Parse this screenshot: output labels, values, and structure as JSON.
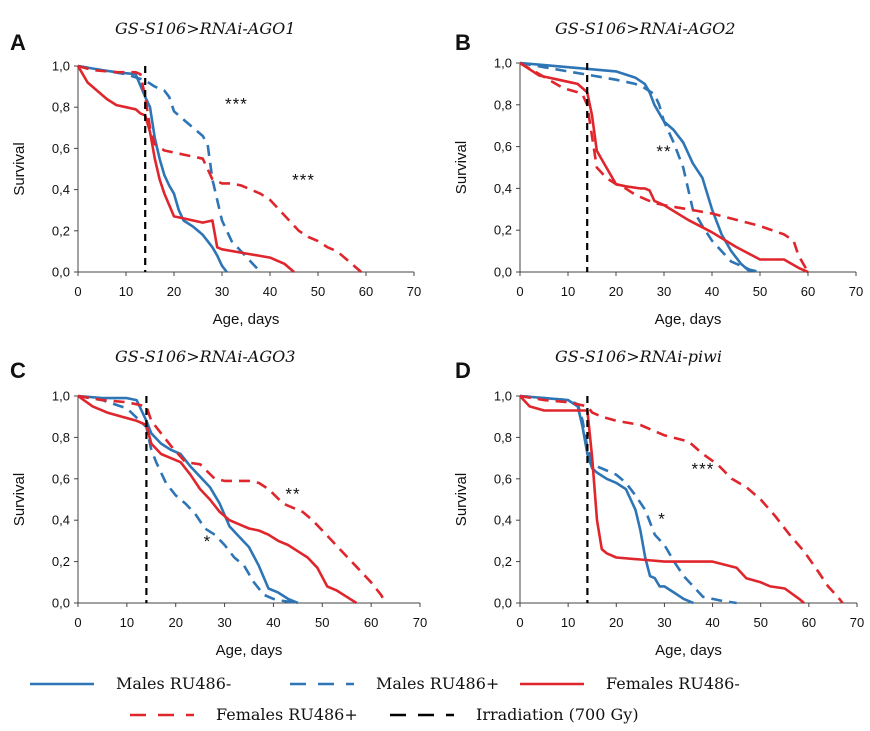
{
  "colors": {
    "males": "#2e75b6",
    "females": "#e0262d",
    "irradiation": "#000000",
    "axis": "#444444"
  },
  "legend": [
    {
      "key": "males_minus",
      "label": "Males RU486-",
      "color": "#2e75b6",
      "dash": false
    },
    {
      "key": "males_plus",
      "label": "Males RU486+",
      "color": "#2e75b6",
      "dash": true
    },
    {
      "key": "females_minus",
      "label": "Females RU486-",
      "color": "#e0262d",
      "dash": false
    },
    {
      "key": "females_plus",
      "label": "Females RU486+",
      "color": "#e0262d",
      "dash": true
    },
    {
      "key": "irradiation",
      "label": "Irradiation (700 Gy)",
      "color": "#000000",
      "dash": true
    }
  ],
  "chart_data": [
    {
      "type": "line",
      "panel": "A",
      "title": "GS-S106>RNAi-AGO1",
      "xlabel": "Age, days",
      "ylabel": "Survival",
      "xlim": [
        0,
        70
      ],
      "ylim": [
        0,
        1
      ],
      "xticks": [
        "0",
        "10",
        "20",
        "30",
        "40",
        "50",
        "60",
        "70"
      ],
      "yticks": [
        "0,0",
        "0,2",
        "0,4",
        "0,6",
        "0,8",
        "1,0"
      ],
      "irradiation_day": 14,
      "annotations": [
        {
          "text": "***",
          "x": 33,
          "y": 0.79
        },
        {
          "text": "***",
          "x": 47,
          "y": 0.42
        }
      ],
      "series": [
        {
          "name": "Males RU486-",
          "x": [
            0,
            5,
            8,
            12,
            14,
            15,
            16,
            17,
            18,
            19,
            20,
            21,
            22,
            24,
            25,
            26,
            27,
            28,
            29,
            30,
            31
          ],
          "y": [
            1.0,
            0.98,
            0.97,
            0.96,
            0.85,
            0.8,
            0.65,
            0.55,
            0.47,
            0.42,
            0.38,
            0.3,
            0.25,
            0.22,
            0.2,
            0.18,
            0.15,
            0.12,
            0.08,
            0.03,
            0.0
          ]
        },
        {
          "name": "Males RU486+",
          "x": [
            0,
            5,
            10,
            14,
            16,
            18,
            19,
            20,
            22,
            24,
            26,
            27,
            28,
            29,
            30,
            32,
            34,
            36,
            38
          ],
          "y": [
            1.0,
            0.98,
            0.96,
            0.93,
            0.9,
            0.88,
            0.85,
            0.78,
            0.74,
            0.7,
            0.66,
            0.62,
            0.45,
            0.35,
            0.25,
            0.15,
            0.1,
            0.05,
            0.0
          ]
        },
        {
          "name": "Females RU486-",
          "x": [
            0,
            2,
            4,
            6,
            8,
            10,
            12,
            13,
            14,
            15,
            16,
            17,
            18,
            20,
            22,
            24,
            26,
            28,
            29,
            30,
            35,
            40,
            43,
            45
          ],
          "y": [
            1.0,
            0.92,
            0.88,
            0.84,
            0.81,
            0.8,
            0.79,
            0.77,
            0.76,
            0.68,
            0.55,
            0.45,
            0.38,
            0.27,
            0.26,
            0.25,
            0.24,
            0.25,
            0.12,
            0.11,
            0.09,
            0.07,
            0.04,
            0.0
          ]
        },
        {
          "name": "Females RU486+",
          "x": [
            0,
            3,
            8,
            12,
            13,
            14,
            15,
            16,
            18,
            20,
            22,
            24,
            26,
            28,
            30,
            32,
            34,
            36,
            38,
            40,
            42,
            44,
            46,
            48,
            50,
            52,
            54,
            56,
            58,
            59
          ],
          "y": [
            1.0,
            0.98,
            0.97,
            0.97,
            0.96,
            0.85,
            0.7,
            0.62,
            0.59,
            0.58,
            0.57,
            0.56,
            0.55,
            0.45,
            0.43,
            0.43,
            0.42,
            0.4,
            0.38,
            0.35,
            0.3,
            0.25,
            0.2,
            0.17,
            0.15,
            0.12,
            0.1,
            0.06,
            0.02,
            0.0
          ]
        }
      ]
    },
    {
      "type": "line",
      "panel": "B",
      "title": "GS-S106>RNAi-AGO2",
      "xlabel": "Age, days",
      "ylabel": "Survival",
      "xlim": [
        0,
        70
      ],
      "ylim": [
        0,
        1
      ],
      "xticks": [
        "0",
        "10",
        "20",
        "30",
        "40",
        "50",
        "60",
        "70"
      ],
      "yticks": [
        "0,0",
        "0,2",
        "0,4",
        "0,6",
        "0,8",
        "1,0"
      ],
      "irradiation_day": 14,
      "annotations": [
        {
          "text": "**",
          "x": 30,
          "y": 0.55
        }
      ],
      "series": [
        {
          "name": "Males RU486-",
          "x": [
            0,
            5,
            10,
            15,
            20,
            24,
            26,
            27,
            28,
            30,
            32,
            34,
            36,
            38,
            40,
            42,
            44,
            46,
            48
          ],
          "y": [
            1.0,
            0.99,
            0.98,
            0.97,
            0.96,
            0.93,
            0.9,
            0.86,
            0.8,
            0.72,
            0.68,
            0.62,
            0.52,
            0.45,
            0.3,
            0.18,
            0.1,
            0.04,
            0.0
          ]
        },
        {
          "name": "Males RU486+",
          "x": [
            0,
            5,
            10,
            15,
            20,
            24,
            26,
            28,
            29,
            30,
            32,
            34,
            35,
            36,
            38,
            40,
            42,
            44,
            46,
            48,
            50
          ],
          "y": [
            1.0,
            0.98,
            0.96,
            0.94,
            0.92,
            0.9,
            0.88,
            0.85,
            0.8,
            0.72,
            0.62,
            0.5,
            0.4,
            0.3,
            0.22,
            0.15,
            0.1,
            0.05,
            0.03,
            0.01,
            0.0
          ]
        },
        {
          "name": "Females RU486-",
          "x": [
            0,
            2,
            4,
            6,
            8,
            10,
            12,
            13,
            14,
            15,
            16,
            17,
            18,
            20,
            22,
            25,
            26,
            27,
            28,
            30,
            35,
            40,
            45,
            50,
            55,
            58,
            60
          ],
          "y": [
            1.0,
            0.97,
            0.94,
            0.93,
            0.92,
            0.91,
            0.9,
            0.88,
            0.86,
            0.75,
            0.58,
            0.54,
            0.5,
            0.42,
            0.41,
            0.4,
            0.4,
            0.39,
            0.34,
            0.32,
            0.25,
            0.19,
            0.12,
            0.06,
            0.06,
            0.02,
            0.0
          ]
        },
        {
          "name": "Females RU486+",
          "x": [
            0,
            3,
            6,
            9,
            12,
            13,
            14,
            15,
            16,
            18,
            20,
            22,
            24,
            26,
            28,
            30,
            35,
            40,
            45,
            50,
            55,
            57,
            58,
            60
          ],
          "y": [
            1.0,
            0.96,
            0.92,
            0.88,
            0.86,
            0.85,
            0.8,
            0.65,
            0.5,
            0.45,
            0.42,
            0.4,
            0.37,
            0.35,
            0.33,
            0.32,
            0.3,
            0.28,
            0.25,
            0.22,
            0.18,
            0.15,
            0.08,
            0.0
          ]
        }
      ]
    },
    {
      "type": "line",
      "panel": "C",
      "title": "GS-S106>RNAi-AGO3",
      "xlabel": "Age, days",
      "ylabel": "Survival",
      "xlim": [
        0,
        70
      ],
      "ylim": [
        0,
        1
      ],
      "xticks": [
        "0",
        "10",
        "20",
        "30",
        "40",
        "50",
        "60",
        "70"
      ],
      "yticks": [
        "0,0",
        "0,2",
        "0,4",
        "0,6",
        "0,8",
        "1,0"
      ],
      "irradiation_day": 14,
      "annotations": [
        {
          "text": "**",
          "x": 44,
          "y": 0.5
        },
        {
          "text": "*",
          "x": 26.5,
          "y": 0.27
        }
      ],
      "series": [
        {
          "name": "Males RU486-",
          "x": [
            0,
            5,
            10,
            12,
            13,
            14,
            15,
            17,
            19,
            21,
            23,
            25,
            27,
            29,
            31,
            33,
            35,
            37,
            39,
            41,
            43,
            45
          ],
          "y": [
            1.0,
            0.99,
            0.99,
            0.98,
            0.93,
            0.88,
            0.82,
            0.77,
            0.74,
            0.72,
            0.66,
            0.61,
            0.56,
            0.48,
            0.37,
            0.32,
            0.27,
            0.18,
            0.07,
            0.05,
            0.02,
            0.0
          ]
        },
        {
          "name": "Males RU486+",
          "x": [
            0,
            5,
            10,
            14,
            15,
            16,
            18,
            20,
            22,
            24,
            26,
            28,
            30,
            32,
            34,
            36,
            38,
            40,
            42,
            45
          ],
          "y": [
            1.0,
            0.98,
            0.94,
            0.85,
            0.74,
            0.68,
            0.58,
            0.52,
            0.48,
            0.43,
            0.36,
            0.33,
            0.28,
            0.22,
            0.18,
            0.1,
            0.04,
            0.02,
            0.01,
            0.0
          ]
        },
        {
          "name": "Females RU486-",
          "x": [
            0,
            3,
            6,
            9,
            12,
            14,
            15,
            17,
            19,
            21,
            23,
            25,
            27,
            29,
            31,
            33,
            35,
            37,
            39,
            41,
            43,
            45,
            47,
            49,
            51,
            53,
            55,
            57
          ],
          "y": [
            1.0,
            0.95,
            0.92,
            0.9,
            0.88,
            0.86,
            0.77,
            0.72,
            0.7,
            0.68,
            0.62,
            0.55,
            0.5,
            0.44,
            0.4,
            0.38,
            0.36,
            0.35,
            0.33,
            0.3,
            0.28,
            0.25,
            0.22,
            0.17,
            0.08,
            0.06,
            0.03,
            0.0
          ]
        },
        {
          "name": "Females RU486+",
          "x": [
            0,
            5,
            10,
            14,
            15,
            17,
            19,
            22,
            25,
            28,
            30,
            35,
            37,
            39,
            42,
            44,
            46,
            48,
            50,
            52,
            54,
            56,
            58,
            60,
            62,
            63
          ],
          "y": [
            1.0,
            0.98,
            0.97,
            0.95,
            0.88,
            0.82,
            0.76,
            0.68,
            0.67,
            0.6,
            0.59,
            0.59,
            0.58,
            0.55,
            0.48,
            0.46,
            0.44,
            0.4,
            0.35,
            0.3,
            0.25,
            0.2,
            0.15,
            0.1,
            0.04,
            0.0
          ]
        }
      ]
    },
    {
      "type": "line",
      "panel": "D",
      "title": "GS-S106>RNAi-piwi",
      "xlabel": "Age, days",
      "ylabel": "Survival",
      "xlim": [
        0,
        70
      ],
      "ylim": [
        0,
        1
      ],
      "xticks": [
        "0",
        "10",
        "20",
        "30",
        "40",
        "50",
        "60",
        "70"
      ],
      "yticks": [
        "0,0",
        "0,2",
        "0,4",
        "0,6",
        "0,8",
        "1,0"
      ],
      "irradiation_day": 14,
      "annotations": [
        {
          "text": "***",
          "x": 38,
          "y": 0.62
        },
        {
          "text": "*",
          "x": 29.5,
          "y": 0.38
        }
      ],
      "series": [
        {
          "name": "Males RU486-",
          "x": [
            0,
            5,
            10,
            12,
            13,
            14,
            15,
            16,
            18,
            20,
            22,
            23,
            24,
            25,
            26,
            27,
            28,
            29,
            30,
            32,
            34,
            35,
            36
          ],
          "y": [
            1.0,
            0.99,
            0.98,
            0.95,
            0.85,
            0.72,
            0.65,
            0.63,
            0.6,
            0.58,
            0.55,
            0.5,
            0.45,
            0.35,
            0.22,
            0.13,
            0.12,
            0.08,
            0.08,
            0.05,
            0.02,
            0.01,
            0.0
          ]
        },
        {
          "name": "Males RU486+",
          "x": [
            0,
            5,
            10,
            12,
            13,
            14,
            15,
            16,
            18,
            20,
            22,
            24,
            26,
            28,
            30,
            32,
            34,
            36,
            38,
            40,
            42,
            45
          ],
          "y": [
            1.0,
            0.99,
            0.98,
            0.96,
            0.88,
            0.75,
            0.68,
            0.66,
            0.64,
            0.62,
            0.58,
            0.52,
            0.45,
            0.33,
            0.28,
            0.2,
            0.13,
            0.08,
            0.03,
            0.02,
            0.01,
            0.0
          ]
        },
        {
          "name": "Females RU486-",
          "x": [
            0,
            2,
            5,
            8,
            10,
            14,
            15,
            16,
            17,
            18,
            20,
            25,
            30,
            35,
            40,
            45,
            47,
            50,
            52,
            55,
            58,
            59
          ],
          "y": [
            1.0,
            0.95,
            0.93,
            0.93,
            0.93,
            0.93,
            0.7,
            0.4,
            0.26,
            0.24,
            0.22,
            0.21,
            0.2,
            0.2,
            0.2,
            0.17,
            0.12,
            0.1,
            0.08,
            0.07,
            0.02,
            0.0
          ]
        },
        {
          "name": "Females RU486+",
          "x": [
            0,
            5,
            10,
            14,
            15,
            17,
            20,
            25,
            30,
            35,
            38,
            41,
            44,
            47,
            50,
            53,
            56,
            59,
            62,
            64,
            66,
            67
          ],
          "y": [
            1.0,
            0.98,
            0.97,
            0.95,
            0.92,
            0.9,
            0.88,
            0.86,
            0.81,
            0.78,
            0.72,
            0.67,
            0.6,
            0.56,
            0.5,
            0.42,
            0.33,
            0.25,
            0.15,
            0.08,
            0.03,
            0.0
          ]
        }
      ]
    }
  ]
}
